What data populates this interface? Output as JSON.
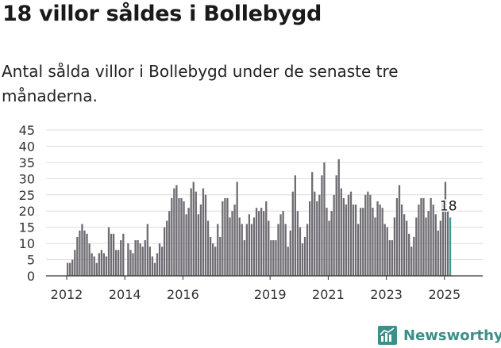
{
  "header": {
    "title": "18 villor såldes i Bollebygd",
    "subtitle": "Antal sålda villor i Bollebygd under de senaste tre månaderna."
  },
  "brand": {
    "name": "Newsworthy",
    "logo_icon": "newsworthy-bar-chart-logo-icon",
    "color": "#3f8f89"
  },
  "colors": {
    "bar": "#6e6c72",
    "highlight_bar": "#3f9b96",
    "grid": "#dcdcdc",
    "axis": "#333333"
  },
  "chart_data": {
    "type": "bar",
    "start_year": 2012,
    "ylim": [
      0,
      45
    ],
    "yticks": [
      0,
      5,
      10,
      15,
      20,
      25,
      30,
      35,
      40,
      45
    ],
    "xticks": [
      "2012",
      "2014",
      "2016",
      "2019",
      "2021",
      "2023",
      "2025"
    ],
    "grid": "horizontal",
    "highlight": "last",
    "last_value_label": "18",
    "series": [
      {
        "values": [
          4,
          4,
          5,
          8,
          12,
          14,
          16,
          14,
          13,
          10,
          7,
          6,
          4,
          7,
          8,
          7,
          6,
          15,
          13,
          13,
          8,
          8,
          11,
          13,
          0,
          10,
          8,
          7,
          11,
          11,
          10,
          9,
          11,
          16,
          9,
          6,
          4,
          7,
          10,
          9,
          15,
          17,
          20,
          24,
          27,
          28,
          24,
          24,
          23,
          19,
          21,
          27,
          29,
          26,
          19,
          22,
          27,
          25,
          17,
          12,
          10,
          9,
          16,
          12,
          23,
          24,
          24,
          18,
          20,
          22,
          29,
          18,
          16,
          11,
          16,
          19,
          16,
          18,
          21,
          20,
          21,
          20,
          23,
          17,
          11,
          11,
          11,
          16,
          19,
          20,
          16,
          9,
          14,
          26,
          31,
          20,
          15,
          10,
          12,
          16,
          23,
          32,
          26,
          23,
          25,
          31,
          35,
          21,
          17,
          20,
          25,
          31,
          36,
          27,
          24,
          22,
          25,
          26,
          22,
          22,
          16,
          21,
          21,
          25,
          26,
          25,
          21,
          18,
          23,
          22,
          21,
          16,
          15,
          11,
          11,
          18,
          24,
          28,
          22,
          19,
          17,
          13,
          9,
          12,
          18,
          22,
          24,
          24,
          18,
          20,
          24,
          22,
          19,
          14,
          17,
          23,
          29,
          20,
          18
        ]
      }
    ]
  }
}
